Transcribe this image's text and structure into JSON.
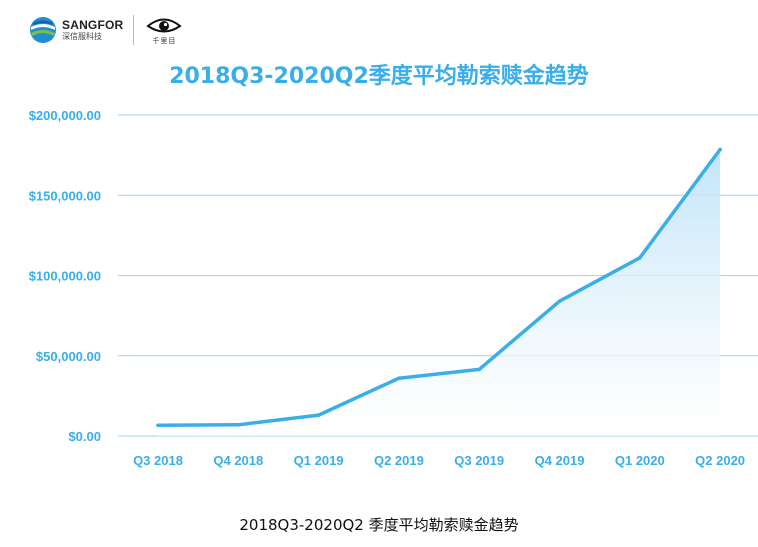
{
  "header": {
    "brand_name": "SANGFOR",
    "brand_sub": "深信服科技",
    "partner_name": "千里目"
  },
  "caption": "2018Q3-2020Q2 季度平均勒索赎金趋势",
  "colors": {
    "accent": "#3aaee8",
    "grid": "#9fd4f2",
    "fill_top": "#c5e6f9"
  },
  "chart_data": {
    "type": "area",
    "title": "2018Q3-2020Q2季度平均勒索赎金趋势",
    "xlabel": "",
    "ylabel": "",
    "categories": [
      "Q3 2018",
      "Q4 2018",
      "Q1 2019",
      "Q2 2019",
      "Q3 2019",
      "Q4 2019",
      "Q1 2020",
      "Q2 2020"
    ],
    "series": [
      {
        "values": [
          6700,
          7000,
          13000,
          36000,
          41500,
          84000,
          111000,
          178500
        ]
      }
    ],
    "ylim": [
      0,
      200000
    ],
    "yticks": [
      {
        "value": 0,
        "label": "$0.00"
      },
      {
        "value": 50000,
        "label": "$50,000.00"
      },
      {
        "value": 100000,
        "label": "$100,000.00"
      },
      {
        "value": 150000,
        "label": "$150,000.00"
      },
      {
        "value": 200000,
        "label": "$200,000.00"
      }
    ],
    "grid": true,
    "legend": "none"
  }
}
